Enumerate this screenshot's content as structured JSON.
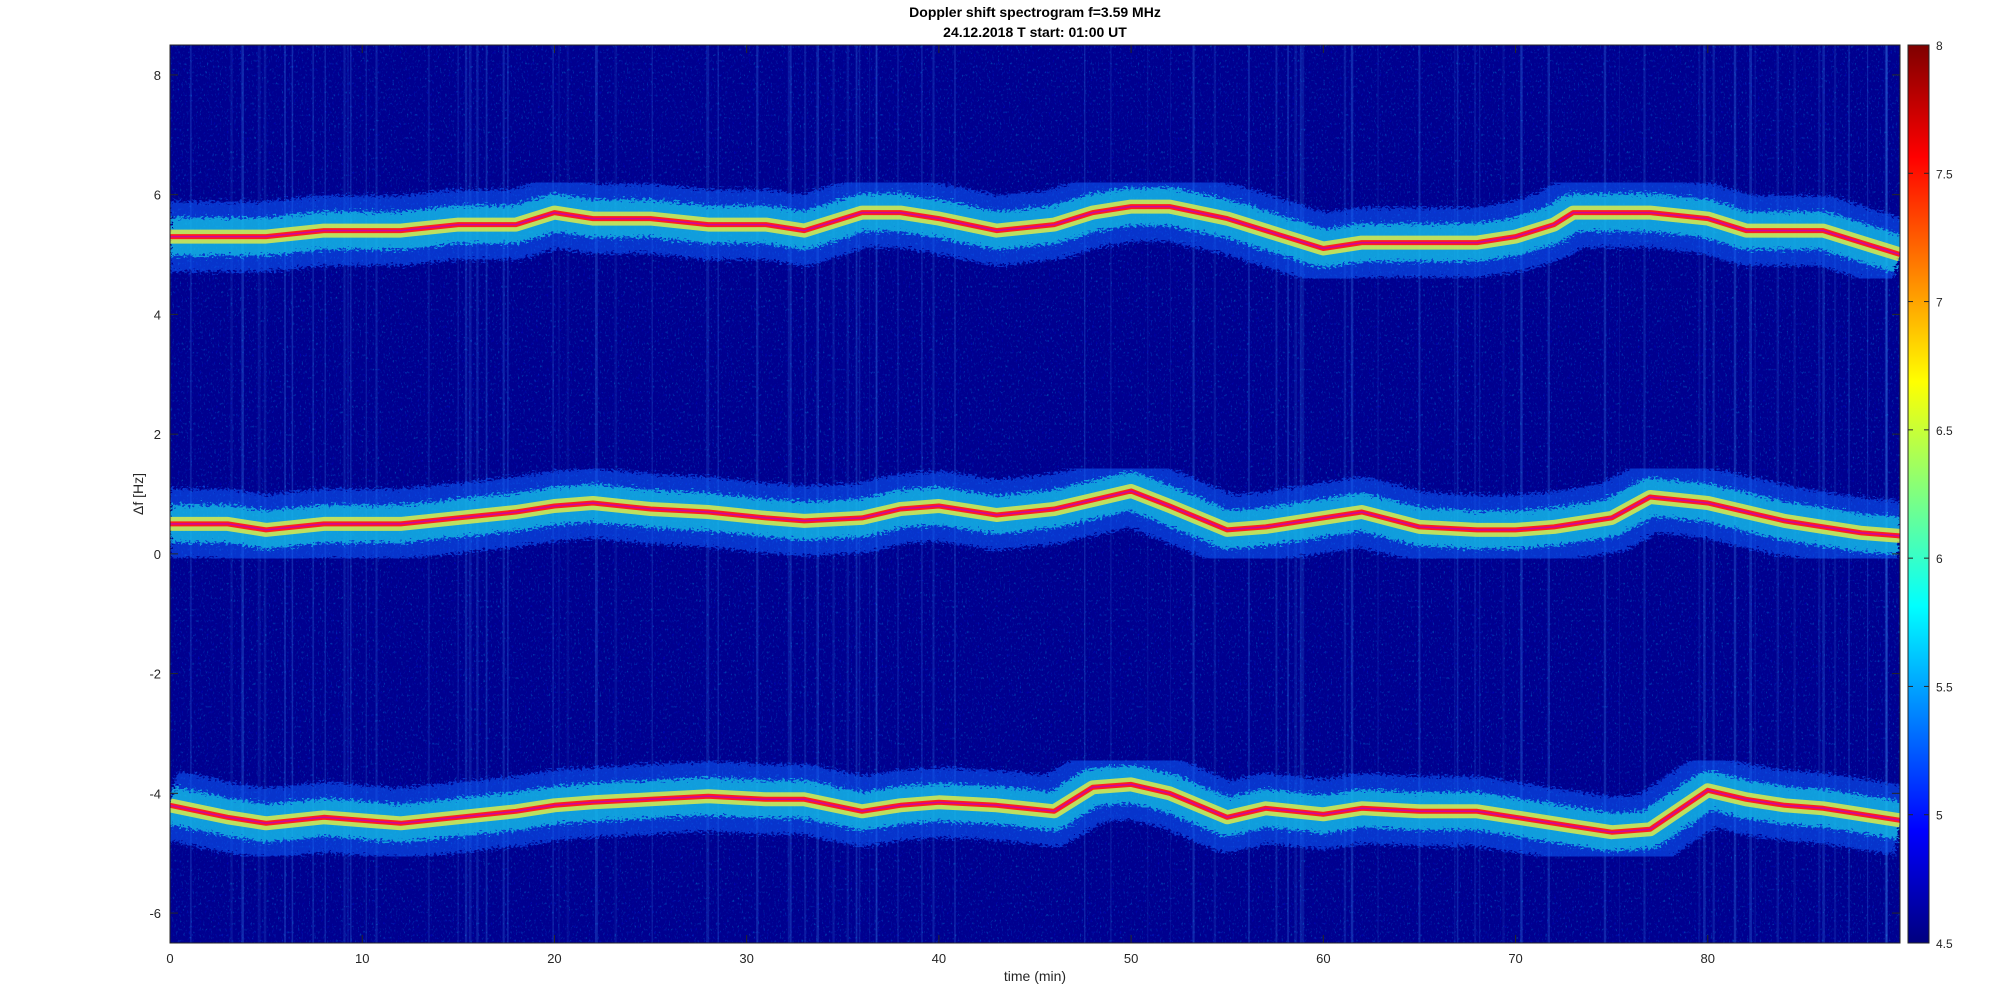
{
  "title": "Doppler shift spectrogram f=3.59 MHz",
  "subtitle": "24.12.2018    T start: 01:00 UT",
  "chart_data": {
    "type": "heatmap",
    "title": "Doppler shift spectrogram f=3.59 MHz",
    "subtitle": "24.12.2018    T start: 01:00 UT",
    "xlabel": "time (min)",
    "ylabel": "Δf [Hz]",
    "xlim": [
      0,
      90
    ],
    "ylim": [
      -6.5,
      8.5
    ],
    "xticks": [
      0,
      10,
      20,
      30,
      40,
      50,
      60,
      70,
      80
    ],
    "yticks": [
      -6,
      -4,
      -2,
      0,
      2,
      4,
      6,
      8
    ],
    "colormap": "jet",
    "clim": [
      4.5,
      8
    ],
    "colorbar_ticks": [
      4.5,
      5,
      5.5,
      6,
      6.5,
      7,
      7.5,
      8
    ],
    "grid": false,
    "traces": [
      {
        "name": "upper",
        "t": [
          0,
          3,
          5,
          8,
          12,
          15,
          18,
          20,
          22,
          25,
          28,
          31,
          33,
          36,
          38,
          40,
          43,
          46,
          48,
          50,
          52,
          55,
          57,
          60,
          62,
          65,
          68,
          70,
          72,
          73,
          75,
          77,
          80,
          82,
          84,
          86,
          88,
          90
        ],
        "df": [
          5.3,
          5.3,
          5.3,
          5.4,
          5.4,
          5.5,
          5.5,
          5.7,
          5.6,
          5.6,
          5.5,
          5.5,
          5.4,
          5.7,
          5.7,
          5.6,
          5.4,
          5.5,
          5.7,
          5.8,
          5.8,
          5.6,
          5.4,
          5.1,
          5.2,
          5.2,
          5.2,
          5.3,
          5.5,
          5.7,
          5.7,
          5.7,
          5.6,
          5.4,
          5.4,
          5.4,
          5.2,
          5.0
        ]
      },
      {
        "name": "middle",
        "t": [
          0,
          3,
          5,
          8,
          12,
          15,
          18,
          20,
          22,
          25,
          28,
          31,
          33,
          36,
          38,
          40,
          43,
          46,
          48,
          50,
          52,
          55,
          57,
          60,
          62,
          65,
          68,
          70,
          72,
          73,
          75,
          77,
          80,
          82,
          84,
          86,
          88,
          90
        ],
        "df": [
          0.5,
          0.5,
          0.4,
          0.5,
          0.5,
          0.6,
          0.7,
          0.8,
          0.85,
          0.75,
          0.7,
          0.6,
          0.55,
          0.6,
          0.75,
          0.8,
          0.65,
          0.75,
          0.9,
          1.05,
          0.8,
          0.4,
          0.45,
          0.6,
          0.7,
          0.45,
          0.4,
          0.4,
          0.45,
          0.5,
          0.6,
          0.95,
          0.85,
          0.7,
          0.55,
          0.45,
          0.35,
          0.3
        ]
      },
      {
        "name": "lower",
        "t": [
          0,
          3,
          5,
          8,
          12,
          15,
          18,
          20,
          22,
          25,
          28,
          31,
          33,
          36,
          38,
          40,
          43,
          46,
          48,
          50,
          52,
          55,
          57,
          60,
          62,
          65,
          68,
          70,
          72,
          73,
          75,
          77,
          80,
          82,
          84,
          86,
          88,
          90
        ],
        "df": [
          -4.2,
          -4.4,
          -4.5,
          -4.4,
          -4.5,
          -4.4,
          -4.3,
          -4.2,
          -4.15,
          -4.1,
          -4.05,
          -4.1,
          -4.1,
          -4.3,
          -4.2,
          -4.15,
          -4.2,
          -4.3,
          -3.9,
          -3.85,
          -4.0,
          -4.4,
          -4.25,
          -4.35,
          -4.25,
          -4.3,
          -4.3,
          -4.4,
          -4.5,
          -4.55,
          -4.65,
          -4.6,
          -3.95,
          -4.1,
          -4.2,
          -4.25,
          -4.35,
          -4.45
        ]
      }
    ]
  }
}
